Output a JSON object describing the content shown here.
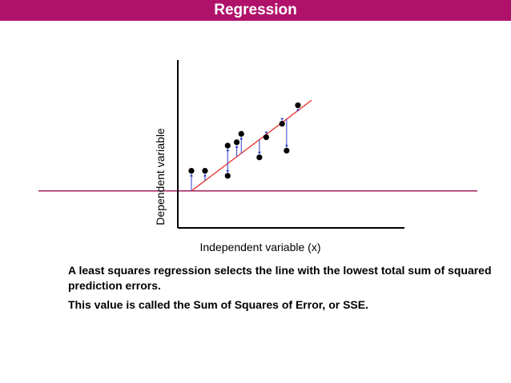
{
  "slide": {
    "title": "Regression",
    "paragraph1": "A least squares regression selects the line with the lowest total sum of squared prediction errors.",
    "paragraph2": "This value is called the Sum of Squares of Error, or SSE."
  },
  "colors": {
    "title_bar": "#b0126a",
    "horizontal_line": "#a0205a",
    "regression_line": "#e8302a",
    "residual_arrows": "#2a3fc8",
    "points": "#000000"
  },
  "chart_data": {
    "type": "scatter",
    "title": "",
    "xlabel": "Independent variable (x)",
    "ylabel": "Dependent variable",
    "xlim": [
      0,
      10
    ],
    "ylim": [
      0,
      10
    ],
    "grid": false,
    "points": [
      {
        "x": 0.6,
        "y": 3.4
      },
      {
        "x": 1.2,
        "y": 3.4
      },
      {
        "x": 2.2,
        "y": 4.9
      },
      {
        "x": 2.2,
        "y": 3.1
      },
      {
        "x": 2.6,
        "y": 5.1
      },
      {
        "x": 2.8,
        "y": 5.6
      },
      {
        "x": 3.6,
        "y": 4.2
      },
      {
        "x": 3.9,
        "y": 5.4
      },
      {
        "x": 4.6,
        "y": 6.2
      },
      {
        "x": 4.8,
        "y": 4.6
      },
      {
        "x": 5.3,
        "y": 7.3
      }
    ],
    "regression_line": {
      "x": [
        0.6,
        5.9
      ],
      "y": [
        2.2,
        7.6
      ]
    },
    "reference_line_y": 2.2
  }
}
